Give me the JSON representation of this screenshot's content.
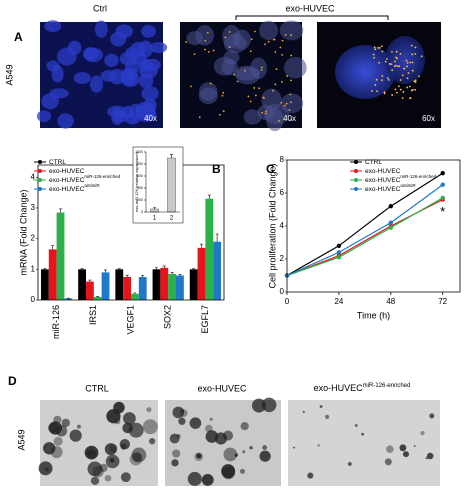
{
  "panel_labels": [
    "A",
    "B",
    "C",
    "D"
  ],
  "panel_a": {
    "col_labels": [
      "Ctrl",
      "exo-HUVEC"
    ],
    "row_label": "A549",
    "magnifications": [
      "40x",
      "40x",
      "60x"
    ]
  },
  "panel_d": {
    "col_labels": [
      {
        "text": "CTRL"
      },
      {
        "text": "exo-HUVEC"
      },
      {
        "text": "exo-HUVEC",
        "sup": "miR-126-enriched"
      }
    ],
    "row_label": "A549"
  },
  "chart_data": [
    {
      "type": "bar",
      "ylabel": "mRNA (Fold Change)",
      "categories": [
        "miR-126",
        "IRS1",
        "VEGF1",
        "SOX2",
        "EGFL7"
      ],
      "series": [
        {
          "name": "CTRL",
          "color": "#000000",
          "values": [
            1,
            1,
            1,
            1,
            1
          ],
          "errors": [
            0.02,
            0.02,
            0.02,
            0.05,
            0.02
          ]
        },
        {
          "name": "exo-HUVEC",
          "color": "#e8141b",
          "values": [
            1.65,
            0.6,
            0.75,
            1.05,
            1.7
          ],
          "errors": [
            0.12,
            0.05,
            0.06,
            0.06,
            0.12
          ]
        },
        {
          "name": "exo-HUVEC",
          "name_sup": "miR-126-enriched",
          "color": "#2bb04a",
          "values": [
            2.85,
            0.1,
            0.2,
            0.85,
            3.3
          ],
          "errors": [
            0.12,
            0.02,
            0.03,
            0.05,
            0.12
          ]
        },
        {
          "name": "exo-HUVEC",
          "name_sup": "antimiR",
          "color": "#1f78c8",
          "values": [
            0.05,
            0.9,
            0.75,
            0.8,
            1.9
          ],
          "errors": [
            0.01,
            0.08,
            0.05,
            0.04,
            0.25
          ]
        }
      ],
      "ylim": [
        0,
        4.4
      ],
      "yticks": [
        0,
        1,
        2,
        3,
        4
      ]
    },
    {
      "type": "bar",
      "ylabel": "exo-miR-126 (relative expression)",
      "categories": [
        "1",
        "2"
      ],
      "values": [
        50,
        900
      ],
      "errors": [
        20,
        60
      ],
      "color": "#c8c8c8",
      "ylim": [
        0,
        1000
      ],
      "yticks": [
        0,
        200,
        400,
        600,
        800,
        1000
      ]
    },
    {
      "type": "line",
      "ylabel": "Cell proliferation (Fold Change)",
      "xlabel": "Time (h)",
      "annotation": "*",
      "x": [
        0,
        24,
        48,
        72
      ],
      "series": [
        {
          "name": "CTRL",
          "color": "#000000",
          "values": [
            1,
            2.8,
            5.2,
            7.2
          ]
        },
        {
          "name": "exo-HUVEC",
          "color": "#e8141b",
          "values": [
            1,
            2.2,
            4.0,
            5.6
          ]
        },
        {
          "name": "exo-HUVEC",
          "name_sup": "miR-126-enriched",
          "color": "#2bb04a",
          "values": [
            1,
            2.1,
            3.9,
            5.7
          ]
        },
        {
          "name": "exo-HUVEC",
          "name_sup": "antimiR",
          "color": "#1f78c8",
          "values": [
            1,
            2.4,
            4.2,
            6.5
          ]
        }
      ],
      "xlim": [
        0,
        80
      ],
      "xticks": [
        0,
        24,
        48,
        72
      ],
      "ylim": [
        0,
        8
      ],
      "yticks": [
        0,
        2,
        4,
        6,
        8
      ]
    }
  ]
}
